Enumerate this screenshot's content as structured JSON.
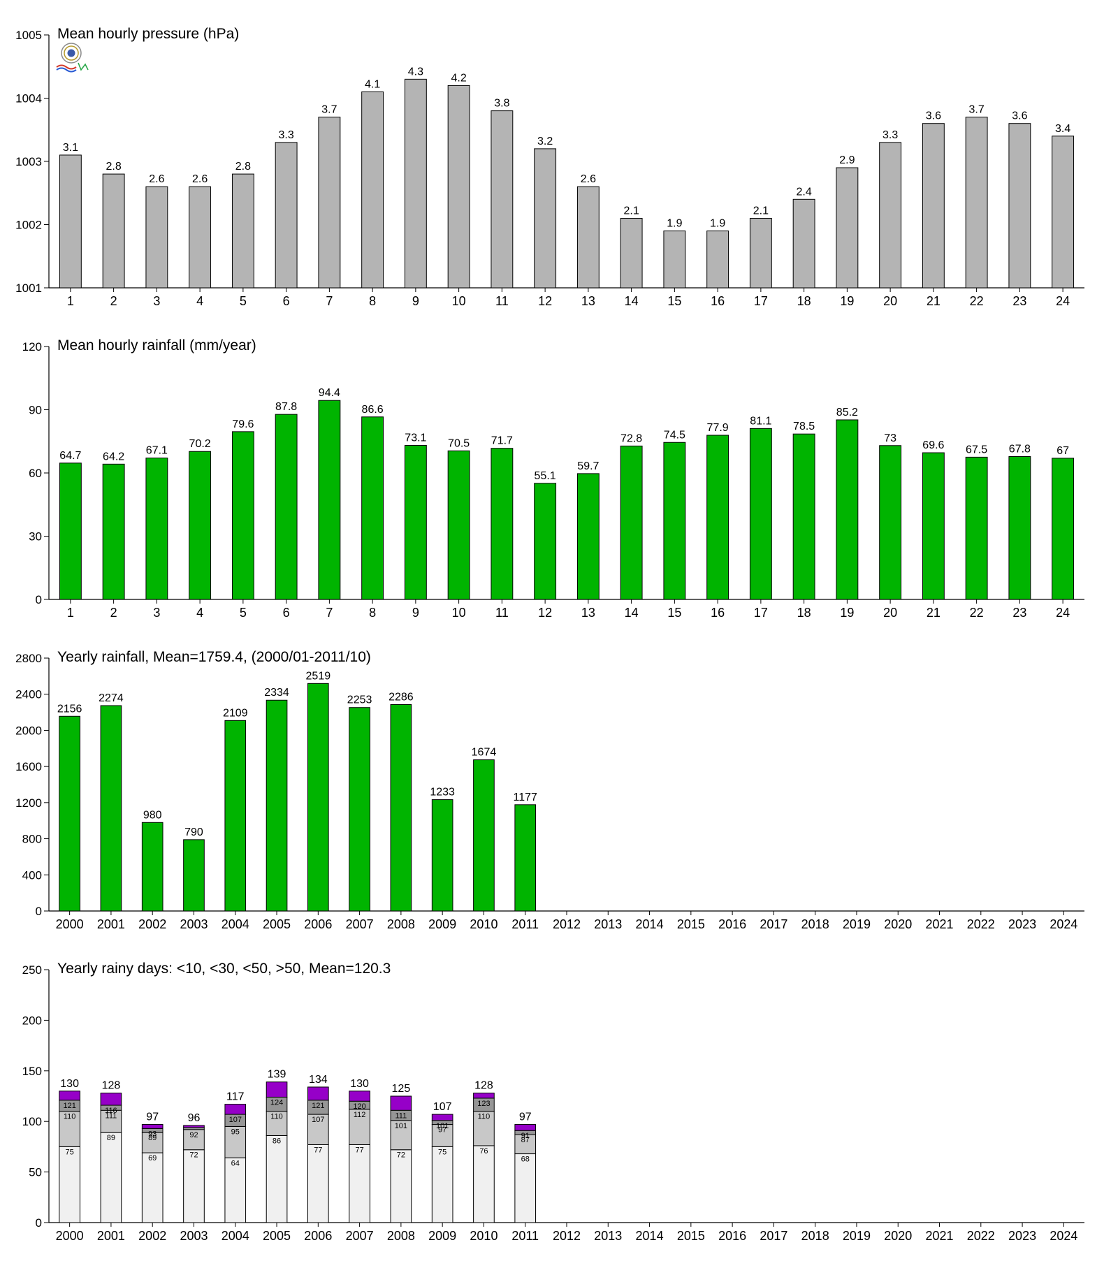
{
  "chart_data": [
    {
      "type": "bar",
      "title": "Mean hourly pressure (hPa)",
      "categories": [
        "1",
        "2",
        "3",
        "4",
        "5",
        "6",
        "7",
        "8",
        "9",
        "10",
        "11",
        "12",
        "13",
        "14",
        "15",
        "16",
        "17",
        "18",
        "19",
        "20",
        "21",
        "22",
        "23",
        "24"
      ],
      "values": [
        1003.1,
        1002.8,
        1002.6,
        1002.6,
        1002.8,
        1003.3,
        1003.7,
        1004.1,
        1004.3,
        1004.2,
        1003.8,
        1003.2,
        1002.6,
        1002.1,
        1001.9,
        1001.9,
        1002.1,
        1002.4,
        1002.9,
        1003.3,
        1003.6,
        1003.7,
        1003.6,
        1003.4
      ],
      "data_labels": [
        "3.1",
        "2.8",
        "2.6",
        "2.6",
        "2.8",
        "3.3",
        "3.7",
        "4.1",
        "4.3",
        "4.2",
        "3.8",
        "3.2",
        "2.6",
        "2.1",
        "1.9",
        "1.9",
        "2.1",
        "2.4",
        "2.9",
        "3.3",
        "3.6",
        "3.7",
        "3.6",
        "3.4"
      ],
      "ylim": [
        1001,
        1005
      ],
      "yticks": [
        1001,
        1002,
        1003,
        1004,
        1005
      ],
      "color": "#b4b4b4",
      "grid": false
    },
    {
      "type": "bar",
      "title": "Mean hourly rainfall (mm/year)",
      "categories": [
        "1",
        "2",
        "3",
        "4",
        "5",
        "6",
        "7",
        "8",
        "9",
        "10",
        "11",
        "12",
        "13",
        "14",
        "15",
        "16",
        "17",
        "18",
        "19",
        "20",
        "21",
        "22",
        "23",
        "24"
      ],
      "values": [
        64.7,
        64.2,
        67.1,
        70.2,
        79.6,
        87.8,
        94.4,
        86.6,
        73.1,
        70.5,
        71.7,
        55.1,
        59.7,
        72.8,
        74.5,
        77.9,
        81.1,
        78.5,
        85.2,
        73,
        69.6,
        67.5,
        67.8,
        67
      ],
      "data_labels": [
        "64.7",
        "64.2",
        "67.1",
        "70.2",
        "79.6",
        "87.8",
        "94.4",
        "86.6",
        "73.1",
        "70.5",
        "71.7",
        "55.1",
        "59.7",
        "72.8",
        "74.5",
        "77.9",
        "81.1",
        "78.5",
        "85.2",
        "73",
        "69.6",
        "67.5",
        "67.8",
        "67"
      ],
      "ylim": [
        0,
        120
      ],
      "yticks": [
        0,
        30,
        60,
        90,
        120
      ],
      "color": "#00b400",
      "grid": false
    },
    {
      "type": "bar",
      "title": "Yearly rainfall, Mean=1759.4, (2000/01-2011/10)",
      "categories": [
        "2000",
        "2001",
        "2002",
        "2003",
        "2004",
        "2005",
        "2006",
        "2007",
        "2008",
        "2009",
        "2010",
        "2011",
        "2012",
        "2013",
        "2014",
        "2015",
        "2016",
        "2017",
        "2018",
        "2019",
        "2020",
        "2021",
        "2022",
        "2023",
        "2024"
      ],
      "values": [
        2156,
        2274,
        980,
        790,
        2109,
        2334,
        2519,
        2253,
        2286,
        1233,
        1674,
        1177,
        null,
        null,
        null,
        null,
        null,
        null,
        null,
        null,
        null,
        null,
        null,
        null,
        null
      ],
      "data_labels": [
        "2156",
        "2274",
        "980",
        "790",
        "2109",
        "2334",
        "2519",
        "2253",
        "2286",
        "1233",
        "1674",
        "1177",
        "",
        "",
        "",
        "",
        "",
        "",
        "",
        "",
        "",
        "",
        "",
        "",
        ""
      ],
      "ylim": [
        0,
        2800
      ],
      "yticks": [
        0,
        400,
        800,
        1200,
        1600,
        2000,
        2400,
        2800
      ],
      "color": "#00b400",
      "grid": false
    },
    {
      "type": "bar",
      "stacked": true,
      "title": "Yearly rainy days: <10, <30, <50, >50, Mean=120.3",
      "categories": [
        "2000",
        "2001",
        "2002",
        "2003",
        "2004",
        "2005",
        "2006",
        "2007",
        "2008",
        "2009",
        "2010",
        "2011",
        "2012",
        "2013",
        "2014",
        "2015",
        "2016",
        "2017",
        "2018",
        "2019",
        "2020",
        "2021",
        "2022",
        "2023",
        "2024"
      ],
      "cumulative": {
        "lt10": [
          75,
          89,
          69,
          72,
          64,
          86,
          77,
          77,
          72,
          75,
          76,
          68
        ],
        "lt30": [
          110,
          111,
          89,
          92,
          95,
          110,
          107,
          112,
          101,
          97,
          110,
          87
        ],
        "lt50": [
          121,
          116,
          93,
          94,
          107,
          124,
          121,
          120,
          111,
          101,
          123,
          91
        ],
        "total": [
          130,
          128,
          97,
          96,
          117,
          139,
          134,
          130,
          125,
          107,
          128,
          97
        ]
      },
      "inner_labels": {
        "lt10": [
          "75",
          "89",
          "69",
          "72",
          "64",
          "86",
          "77",
          "77",
          "72",
          "75",
          "76",
          "68"
        ],
        "lt30": [
          "110",
          "111",
          "89",
          "92",
          "95",
          "110",
          "107",
          "112",
          "101",
          "97",
          "110",
          "87"
        ],
        "lt50": [
          "121",
          "116",
          "93",
          "",
          "107",
          "124",
          "121",
          "120",
          "111",
          "101",
          "123",
          "91"
        ]
      },
      "total_labels": [
        "130",
        "128",
        "97",
        "96",
        "117",
        "139",
        "134",
        "130",
        "125",
        "107",
        "128",
        "97",
        "",
        "",
        "",
        "",
        "",
        "",
        "",
        "",
        "",
        "",
        "",
        "",
        ""
      ],
      "ylim": [
        0,
        250
      ],
      "yticks": [
        0,
        50,
        100,
        150,
        200,
        250
      ],
      "colors": {
        "lt10": "#f0f0f0",
        "lt30": "#c8c8c8",
        "lt50": "#969696",
        "gt50": "#9600c8"
      },
      "grid": false
    }
  ]
}
